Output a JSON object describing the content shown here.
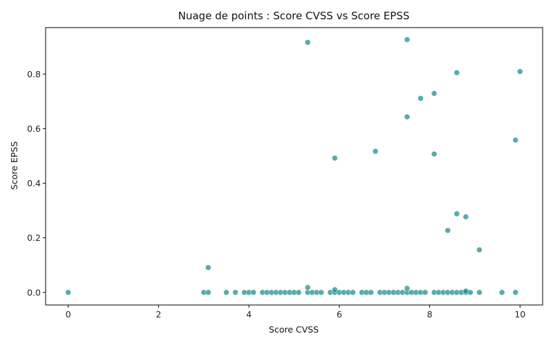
{
  "chart_data": {
    "type": "scatter",
    "title": "Nuage de points : Score CVSS vs Score EPSS",
    "xlabel": "Score CVSS",
    "ylabel": "Score EPSS",
    "xlim": [
      -0.5,
      10.5
    ],
    "ylim": [
      -0.046,
      0.97
    ],
    "xticks": [
      0,
      2,
      4,
      6,
      8,
      10
    ],
    "xtick_labels": [
      "0",
      "2",
      "4",
      "6",
      "8",
      "10"
    ],
    "yticks": [
      0.0,
      0.2,
      0.4,
      0.6,
      0.8
    ],
    "ytick_labels": [
      "0.0",
      "0.2",
      "0.4",
      "0.6",
      "0.8"
    ],
    "grid": false,
    "legend": "none",
    "colors": {
      "point": "#1a8a8a"
    },
    "points": [
      {
        "x": 0.0,
        "y": 0.0
      },
      {
        "x": 3.0,
        "y": 0.0
      },
      {
        "x": 3.1,
        "y": 0.0
      },
      {
        "x": 3.1,
        "y": 0.091
      },
      {
        "x": 3.5,
        "y": 0.0
      },
      {
        "x": 3.7,
        "y": 0.0
      },
      {
        "x": 3.9,
        "y": 0.0
      },
      {
        "x": 4.0,
        "y": 0.0
      },
      {
        "x": 4.1,
        "y": 0.0
      },
      {
        "x": 4.3,
        "y": 0.0
      },
      {
        "x": 4.4,
        "y": 0.0
      },
      {
        "x": 4.5,
        "y": 0.0
      },
      {
        "x": 4.6,
        "y": 0.0
      },
      {
        "x": 4.7,
        "y": 0.0
      },
      {
        "x": 4.8,
        "y": 0.0
      },
      {
        "x": 4.9,
        "y": 0.0
      },
      {
        "x": 5.0,
        "y": 0.0
      },
      {
        "x": 5.1,
        "y": 0.0
      },
      {
        "x": 5.3,
        "y": 0.0
      },
      {
        "x": 5.3,
        "y": 0.018
      },
      {
        "x": 5.3,
        "y": 0.916
      },
      {
        "x": 5.4,
        "y": 0.0
      },
      {
        "x": 5.5,
        "y": 0.0
      },
      {
        "x": 5.6,
        "y": 0.0
      },
      {
        "x": 5.8,
        "y": 0.0
      },
      {
        "x": 5.9,
        "y": 0.0
      },
      {
        "x": 5.9,
        "y": 0.01
      },
      {
        "x": 5.9,
        "y": 0.492
      },
      {
        "x": 6.0,
        "y": 0.0
      },
      {
        "x": 6.1,
        "y": 0.0
      },
      {
        "x": 6.2,
        "y": 0.0
      },
      {
        "x": 6.3,
        "y": 0.0
      },
      {
        "x": 6.5,
        "y": 0.0
      },
      {
        "x": 6.6,
        "y": 0.0
      },
      {
        "x": 6.7,
        "y": 0.0
      },
      {
        "x": 6.8,
        "y": 0.517
      },
      {
        "x": 6.9,
        "y": 0.0
      },
      {
        "x": 7.0,
        "y": 0.0
      },
      {
        "x": 7.1,
        "y": 0.0
      },
      {
        "x": 7.2,
        "y": 0.0
      },
      {
        "x": 7.3,
        "y": 0.0
      },
      {
        "x": 7.4,
        "y": 0.0
      },
      {
        "x": 7.5,
        "y": 0.0
      },
      {
        "x": 7.5,
        "y": 0.015
      },
      {
        "x": 7.5,
        "y": 0.643
      },
      {
        "x": 7.5,
        "y": 0.926
      },
      {
        "x": 7.6,
        "y": 0.0
      },
      {
        "x": 7.7,
        "y": 0.0
      },
      {
        "x": 7.8,
        "y": 0.0
      },
      {
        "x": 7.8,
        "y": 0.711
      },
      {
        "x": 7.9,
        "y": 0.0
      },
      {
        "x": 8.1,
        "y": 0.0
      },
      {
        "x": 8.1,
        "y": 0.507
      },
      {
        "x": 8.1,
        "y": 0.729
      },
      {
        "x": 8.2,
        "y": 0.0
      },
      {
        "x": 8.3,
        "y": 0.0
      },
      {
        "x": 8.4,
        "y": 0.0
      },
      {
        "x": 8.4,
        "y": 0.227
      },
      {
        "x": 8.5,
        "y": 0.0
      },
      {
        "x": 8.6,
        "y": 0.0
      },
      {
        "x": 8.6,
        "y": 0.288
      },
      {
        "x": 8.6,
        "y": 0.805
      },
      {
        "x": 8.7,
        "y": 0.0
      },
      {
        "x": 8.8,
        "y": 0.0
      },
      {
        "x": 8.8,
        "y": 0.005
      },
      {
        "x": 8.8,
        "y": 0.277
      },
      {
        "x": 8.9,
        "y": 0.0
      },
      {
        "x": 9.1,
        "y": 0.0
      },
      {
        "x": 9.1,
        "y": 0.156
      },
      {
        "x": 9.6,
        "y": 0.0
      },
      {
        "x": 9.9,
        "y": 0.0
      },
      {
        "x": 9.9,
        "y": 0.558
      },
      {
        "x": 10.0,
        "y": 0.809
      }
    ]
  }
}
